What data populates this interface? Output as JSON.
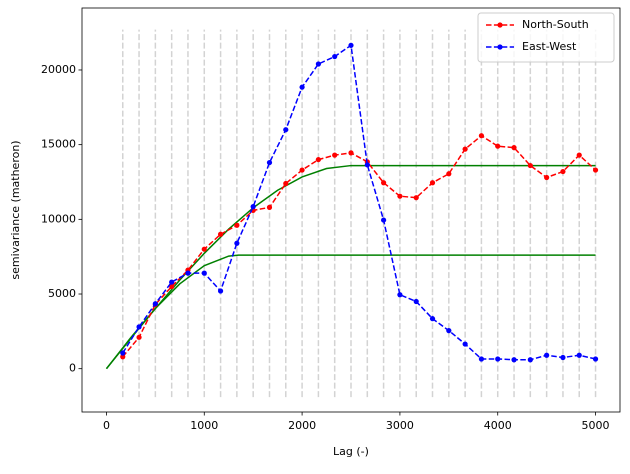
{
  "chart_data": {
    "type": "line",
    "xlabel": "Lag (-)",
    "ylabel": "semivariance (matheron)",
    "x": [
      166.7,
      333.3,
      500,
      666.7,
      833.3,
      1000,
      1166.7,
      1333.3,
      1500,
      1666.7,
      1833.3,
      2000,
      2166.7,
      2333.3,
      2500,
      2666.7,
      2833.3,
      3000,
      3166.7,
      3333.3,
      3500,
      3666.7,
      3833.3,
      4000,
      4166.7,
      4333.3,
      4500,
      4666.7,
      4833.3,
      5000
    ],
    "series": [
      {
        "name": "North-South",
        "color": "#ff0000",
        "values": [
          800,
          2100,
          4300,
          5500,
          6600,
          8000,
          9000,
          9600,
          10600,
          10800,
          12400,
          13300,
          14000,
          14300,
          14450,
          13850,
          12450,
          11550,
          11450,
          12450,
          13050,
          14700,
          15600,
          14900,
          14800,
          13600,
          12800,
          13200,
          14300,
          13300
        ]
      },
      {
        "name": "East-West",
        "color": "#0000ff",
        "values": [
          1050,
          2800,
          4350,
          5800,
          6400,
          6400,
          5200,
          8400,
          10850,
          13800,
          16000,
          18850,
          20400,
          20900,
          21650,
          13650,
          9950,
          4950,
          4500,
          3350,
          2550,
          1650,
          650,
          650,
          600,
          600,
          900,
          750,
          900,
          650
        ]
      }
    ],
    "models": [
      {
        "color": "#008000",
        "x": [
          0,
          250,
          500,
          750,
          1000,
          1250,
          1500,
          1750,
          2000,
          2250,
          2500,
          5000
        ],
        "values": [
          0,
          2033,
          4026,
          5936,
          7725,
          9350,
          10771,
          11948,
          12838,
          13403,
          13600,
          13600
        ]
      },
      {
        "color": "#008000",
        "x": [
          0,
          250,
          500,
          750,
          1000,
          1250,
          1350,
          5000
        ],
        "values": [
          0,
          2087,
          4029,
          5682,
          6900,
          7539,
          7600,
          7600
        ]
      }
    ],
    "vline_color": "#d3d3d3",
    "vline_ylim": [
      -1900,
      22700
    ],
    "xlim": [
      -250,
      5250
    ],
    "xticks": [
      0,
      1000,
      2000,
      3000,
      4000,
      5000
    ],
    "ylim": [
      -2900,
      24150
    ],
    "yticks": [
      0,
      5000,
      10000,
      15000,
      20000
    ],
    "legend": "upper right"
  }
}
